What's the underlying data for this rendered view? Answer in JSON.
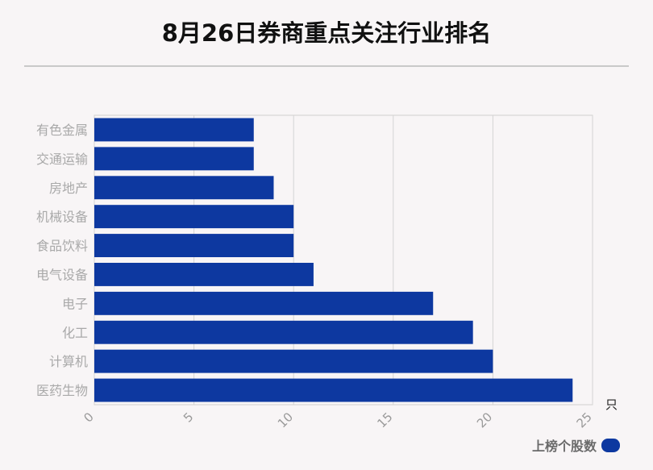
{
  "title": "8月26日券商重点关注行业排名",
  "chart_data": {
    "type": "bar",
    "orientation": "horizontal",
    "title": "8月26日券商重点关注行业排名",
    "categories": [
      "有色金属",
      "交通运输",
      "房地产",
      "机械设备",
      "食品饮料",
      "电气设备",
      "电子",
      "化工",
      "计算机",
      "医药生物"
    ],
    "series": [
      {
        "name": "上榜个股数",
        "values": [
          8,
          8,
          9,
          10,
          10,
          11,
          17,
          19,
          20,
          24
        ]
      }
    ],
    "xlim": [
      0,
      25
    ],
    "xticks": [
      0,
      5,
      10,
      15,
      20,
      25
    ],
    "xunit": "只",
    "grid": true,
    "legend_position": "bottom-right",
    "bar_color": "#0d38a0"
  }
}
